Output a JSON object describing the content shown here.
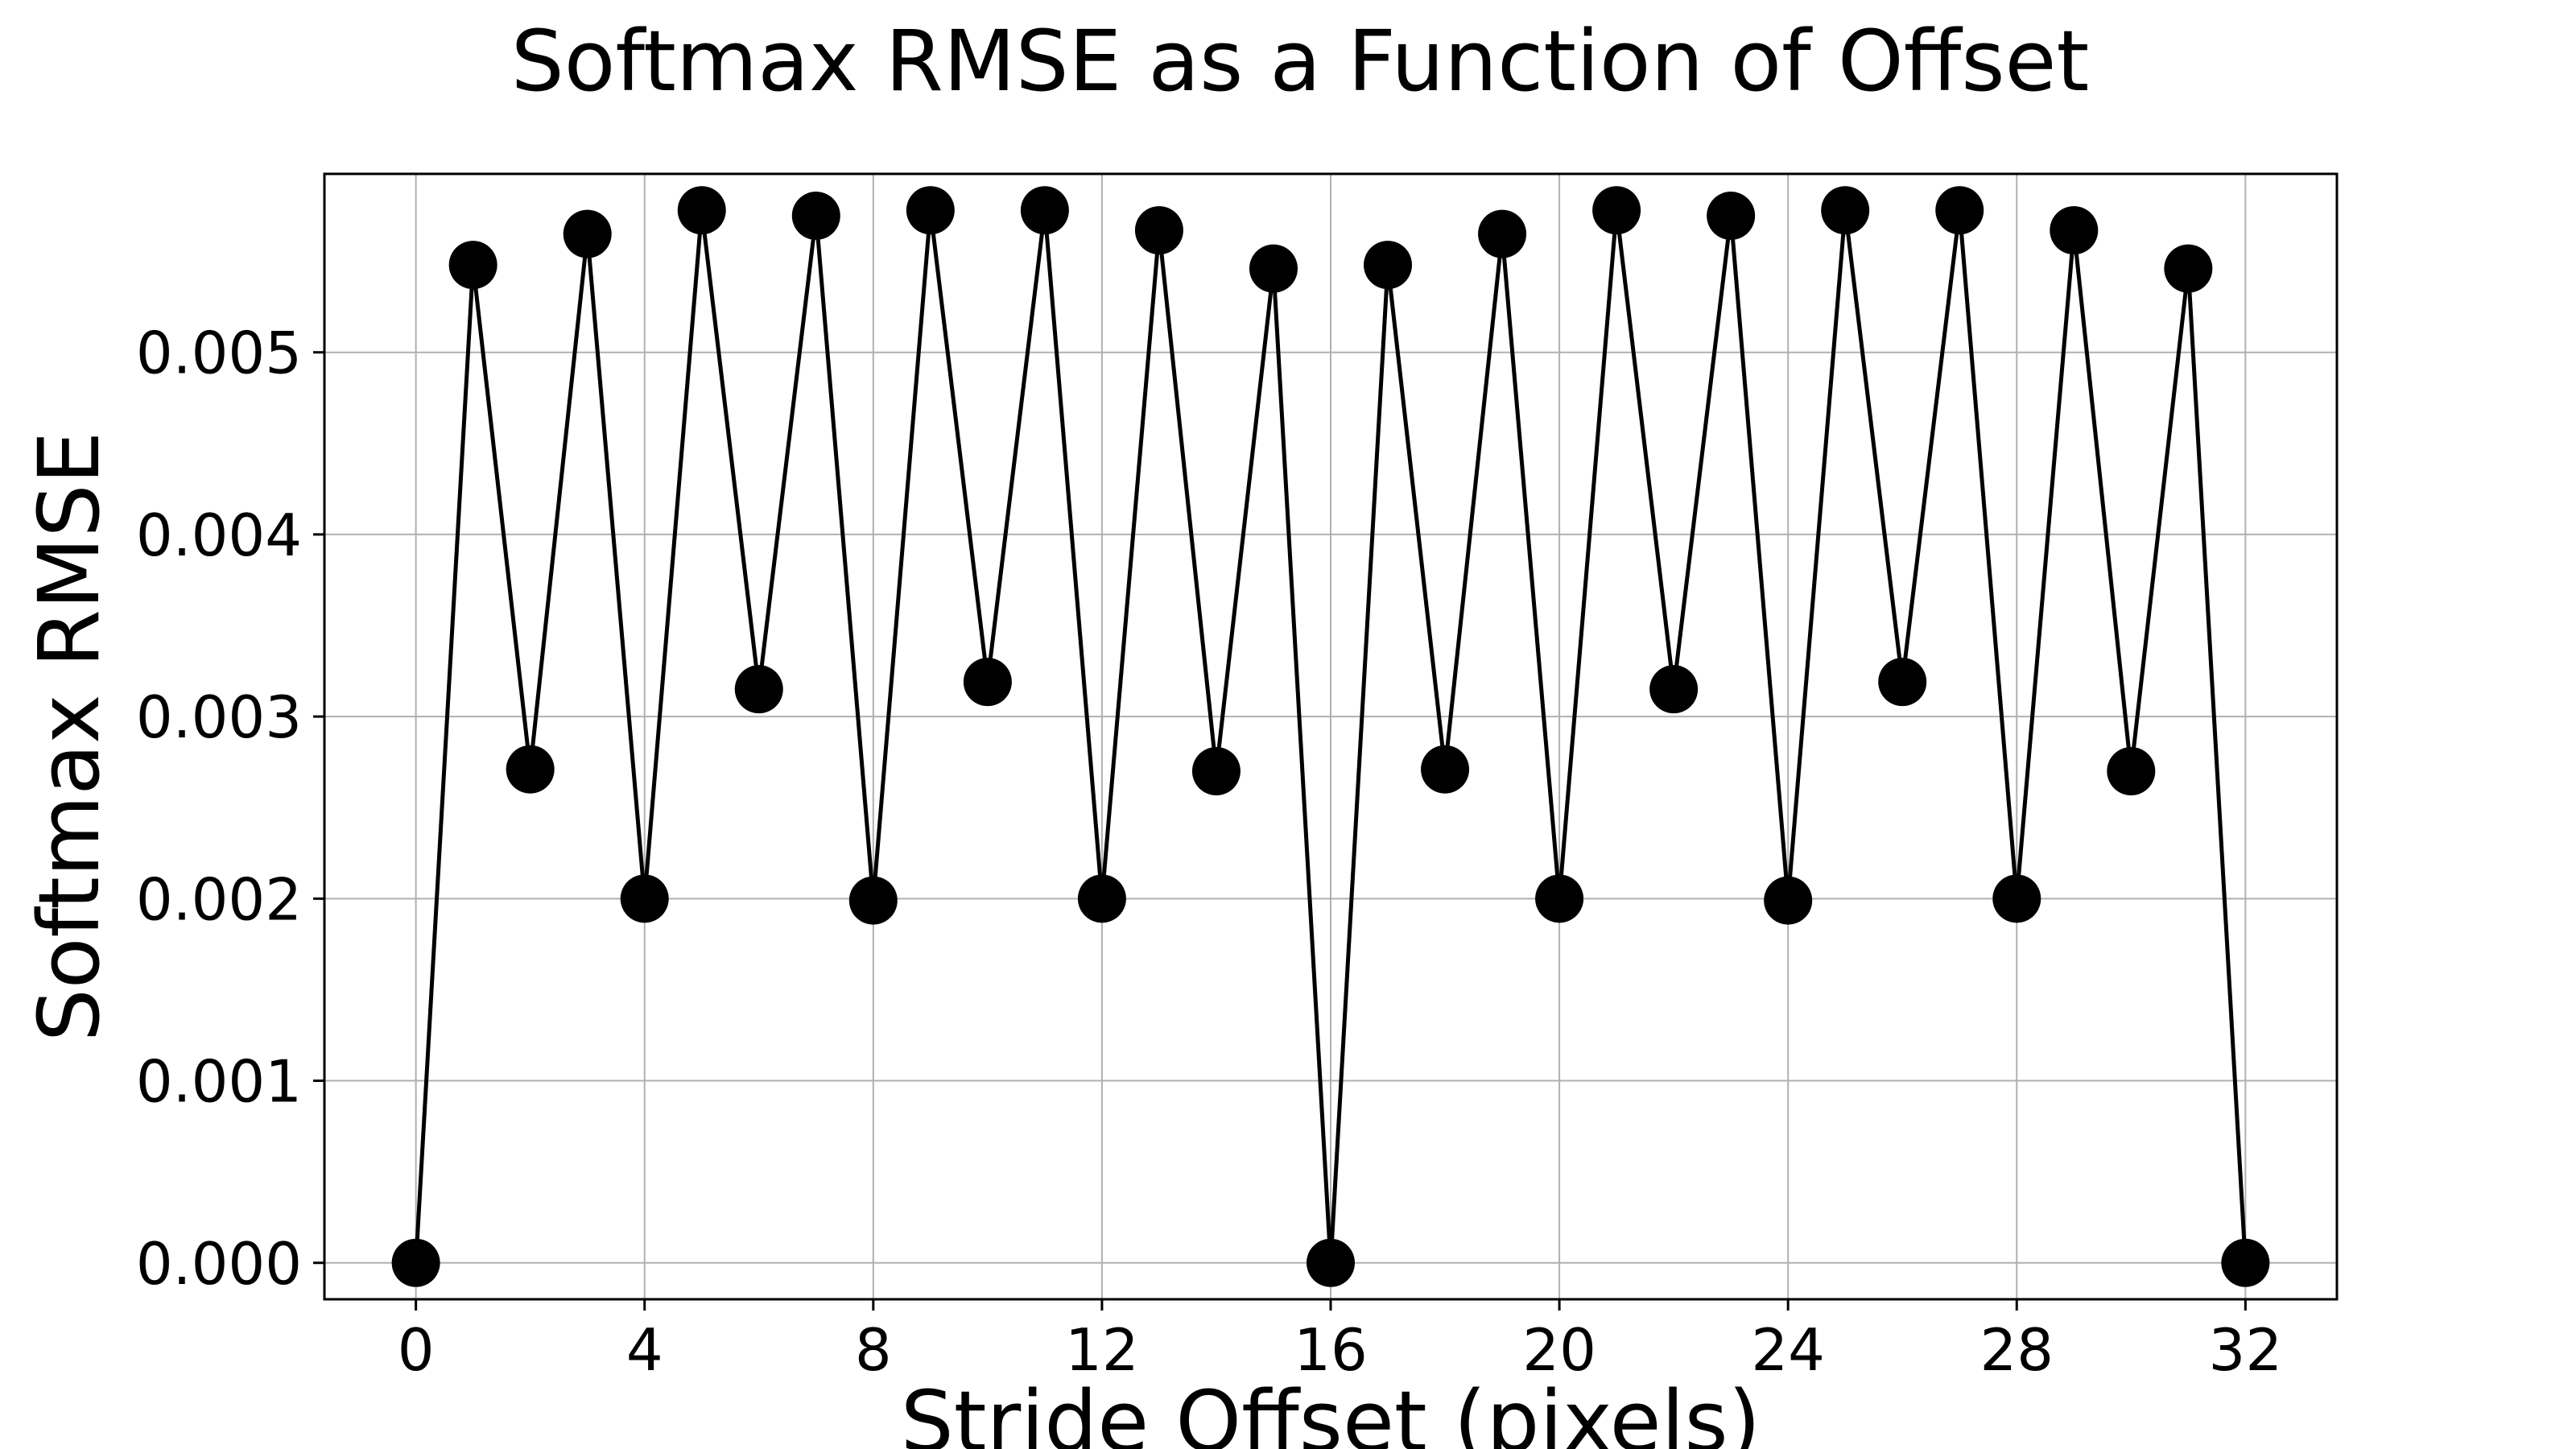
{
  "chart_data": {
    "type": "line",
    "title": "Softmax RMSE as a Function of Offset",
    "xlabel": "Stride Offset (pixels)",
    "ylabel": "Softmax RMSE",
    "xlim": [
      -1.6,
      33.6
    ],
    "ylim": [
      -0.0002,
      0.00598
    ],
    "x_ticks": [
      0,
      4,
      8,
      12,
      16,
      20,
      24,
      28,
      32
    ],
    "x_tick_labels": [
      "0",
      "4",
      "8",
      "12",
      "16",
      "20",
      "24",
      "28",
      "32"
    ],
    "y_ticks": [
      0.0,
      0.001,
      0.002,
      0.003,
      0.004,
      0.005
    ],
    "y_tick_labels": [
      "0.000",
      "0.001",
      "0.002",
      "0.003",
      "0.004",
      "0.005"
    ],
    "grid": true,
    "legend": "none",
    "marker": "circle",
    "color": "#000000",
    "series": [
      {
        "x": [
          0,
          1,
          2,
          3,
          4,
          5,
          6,
          7,
          8,
          9,
          10,
          11,
          12,
          13,
          14,
          15,
          16,
          17,
          18,
          19,
          20,
          21,
          22,
          23,
          24,
          25,
          26,
          27,
          28,
          29,
          30,
          31,
          32
        ],
        "values": [
          0.0,
          0.00548,
          0.00271,
          0.00565,
          0.002,
          0.00578,
          0.00315,
          0.00575,
          0.00199,
          0.00578,
          0.00319,
          0.00578,
          0.002,
          0.00567,
          0.0027,
          0.00546,
          0.0,
          0.00548,
          0.00271,
          0.00565,
          0.002,
          0.00578,
          0.00315,
          0.00575,
          0.00199,
          0.00578,
          0.00319,
          0.00578,
          0.002,
          0.00567,
          0.0027,
          0.00546,
          0.0
        ]
      }
    ]
  }
}
